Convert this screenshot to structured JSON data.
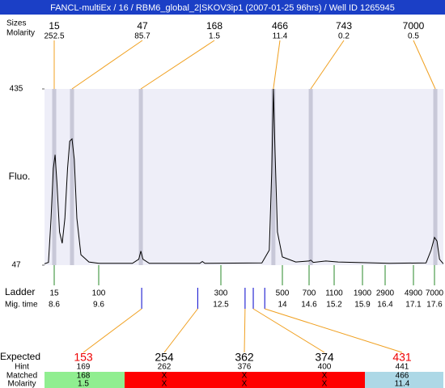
{
  "chart_data": {
    "type": "line",
    "title": "FANCL-multiEx / 16 / RBM6_global_2|SKOV3ip1 (2007-01-25 96hrs) / Well ID 1265945",
    "ylabel": "Fluo.",
    "ylim": [
      47,
      435
    ],
    "yticks": [
      435,
      47
    ],
    "color": "#000000",
    "background": "#eeeef8",
    "band_color": "#c8c8d8",
    "connector_color": "#f0a020",
    "x": [
      8.38,
      8.47,
      8.53,
      8.58,
      8.62,
      8.66,
      8.72,
      8.78,
      8.84,
      8.9,
      8.95,
      9.0,
      9.05,
      9.11,
      9.2,
      9.38,
      9.6,
      10.4,
      10.55,
      10.6,
      10.65,
      10.8,
      12.0,
      12.06,
      12.12,
      13.5,
      13.68,
      13.74,
      13.78,
      13.82,
      13.88,
      14.0,
      14.3,
      14.6,
      14.64,
      14.7,
      15.0,
      15.3,
      16.5,
      17.4,
      17.52,
      17.6,
      17.66,
      17.72,
      17.81
    ],
    "values": [
      50,
      53,
      150,
      260,
      290,
      230,
      120,
      95,
      150,
      260,
      320,
      325,
      280,
      150,
      70,
      54,
      51,
      51,
      60,
      78,
      60,
      51,
      51,
      55,
      51,
      52,
      80,
      250,
      435,
      300,
      120,
      65,
      54,
      56,
      58,
      53,
      56,
      54,
      51,
      52,
      80,
      108,
      100,
      60,
      50
    ],
    "peaks": {
      "size_label": "Sizes",
      "molarity_label": "Molarity",
      "sizes": [
        15,
        47,
        168,
        466,
        743,
        7000
      ],
      "molarity": [
        252.5,
        85.7,
        1.5,
        11.4,
        0.2,
        0.5
      ],
      "x": [
        8.6,
        9.0,
        10.6,
        13.78,
        14.64,
        17.62
      ]
    },
    "ladder": {
      "size_label": "Ladder",
      "time_label": "Mig. time",
      "color": "#2a8a2a",
      "sizes": [
        15,
        100,
        300,
        500,
        700,
        1100,
        1900,
        2900,
        4900,
        7000
      ],
      "times": [
        8.6,
        9.6,
        12.5,
        14,
        14.6,
        15.2,
        15.9,
        16.4,
        17.1,
        17.6
      ]
    },
    "expected": {
      "label": "Expected",
      "hint_label": "Hint",
      "matched_label": "Matched",
      "molarity_label": "Molarity",
      "marker_color": "#0000cc",
      "values": [
        153,
        254,
        362,
        374,
        431
      ],
      "colors": [
        "#ee0000",
        "#000000",
        "#000000",
        "#000000",
        "#ee0000"
      ],
      "hint": [
        169,
        262,
        376,
        400,
        441
      ],
      "matched": [
        168,
        "X",
        "X",
        "X",
        466
      ],
      "molarity": [
        1.5,
        "X",
        "X",
        "X",
        11.4
      ],
      "fills": [
        "#90ee90",
        "#ff0000",
        "#ff0000",
        "#ff0000",
        "#add8e6"
      ],
      "x": [
        10.62,
        11.95,
        13.09,
        13.29,
        13.57
      ]
    }
  }
}
